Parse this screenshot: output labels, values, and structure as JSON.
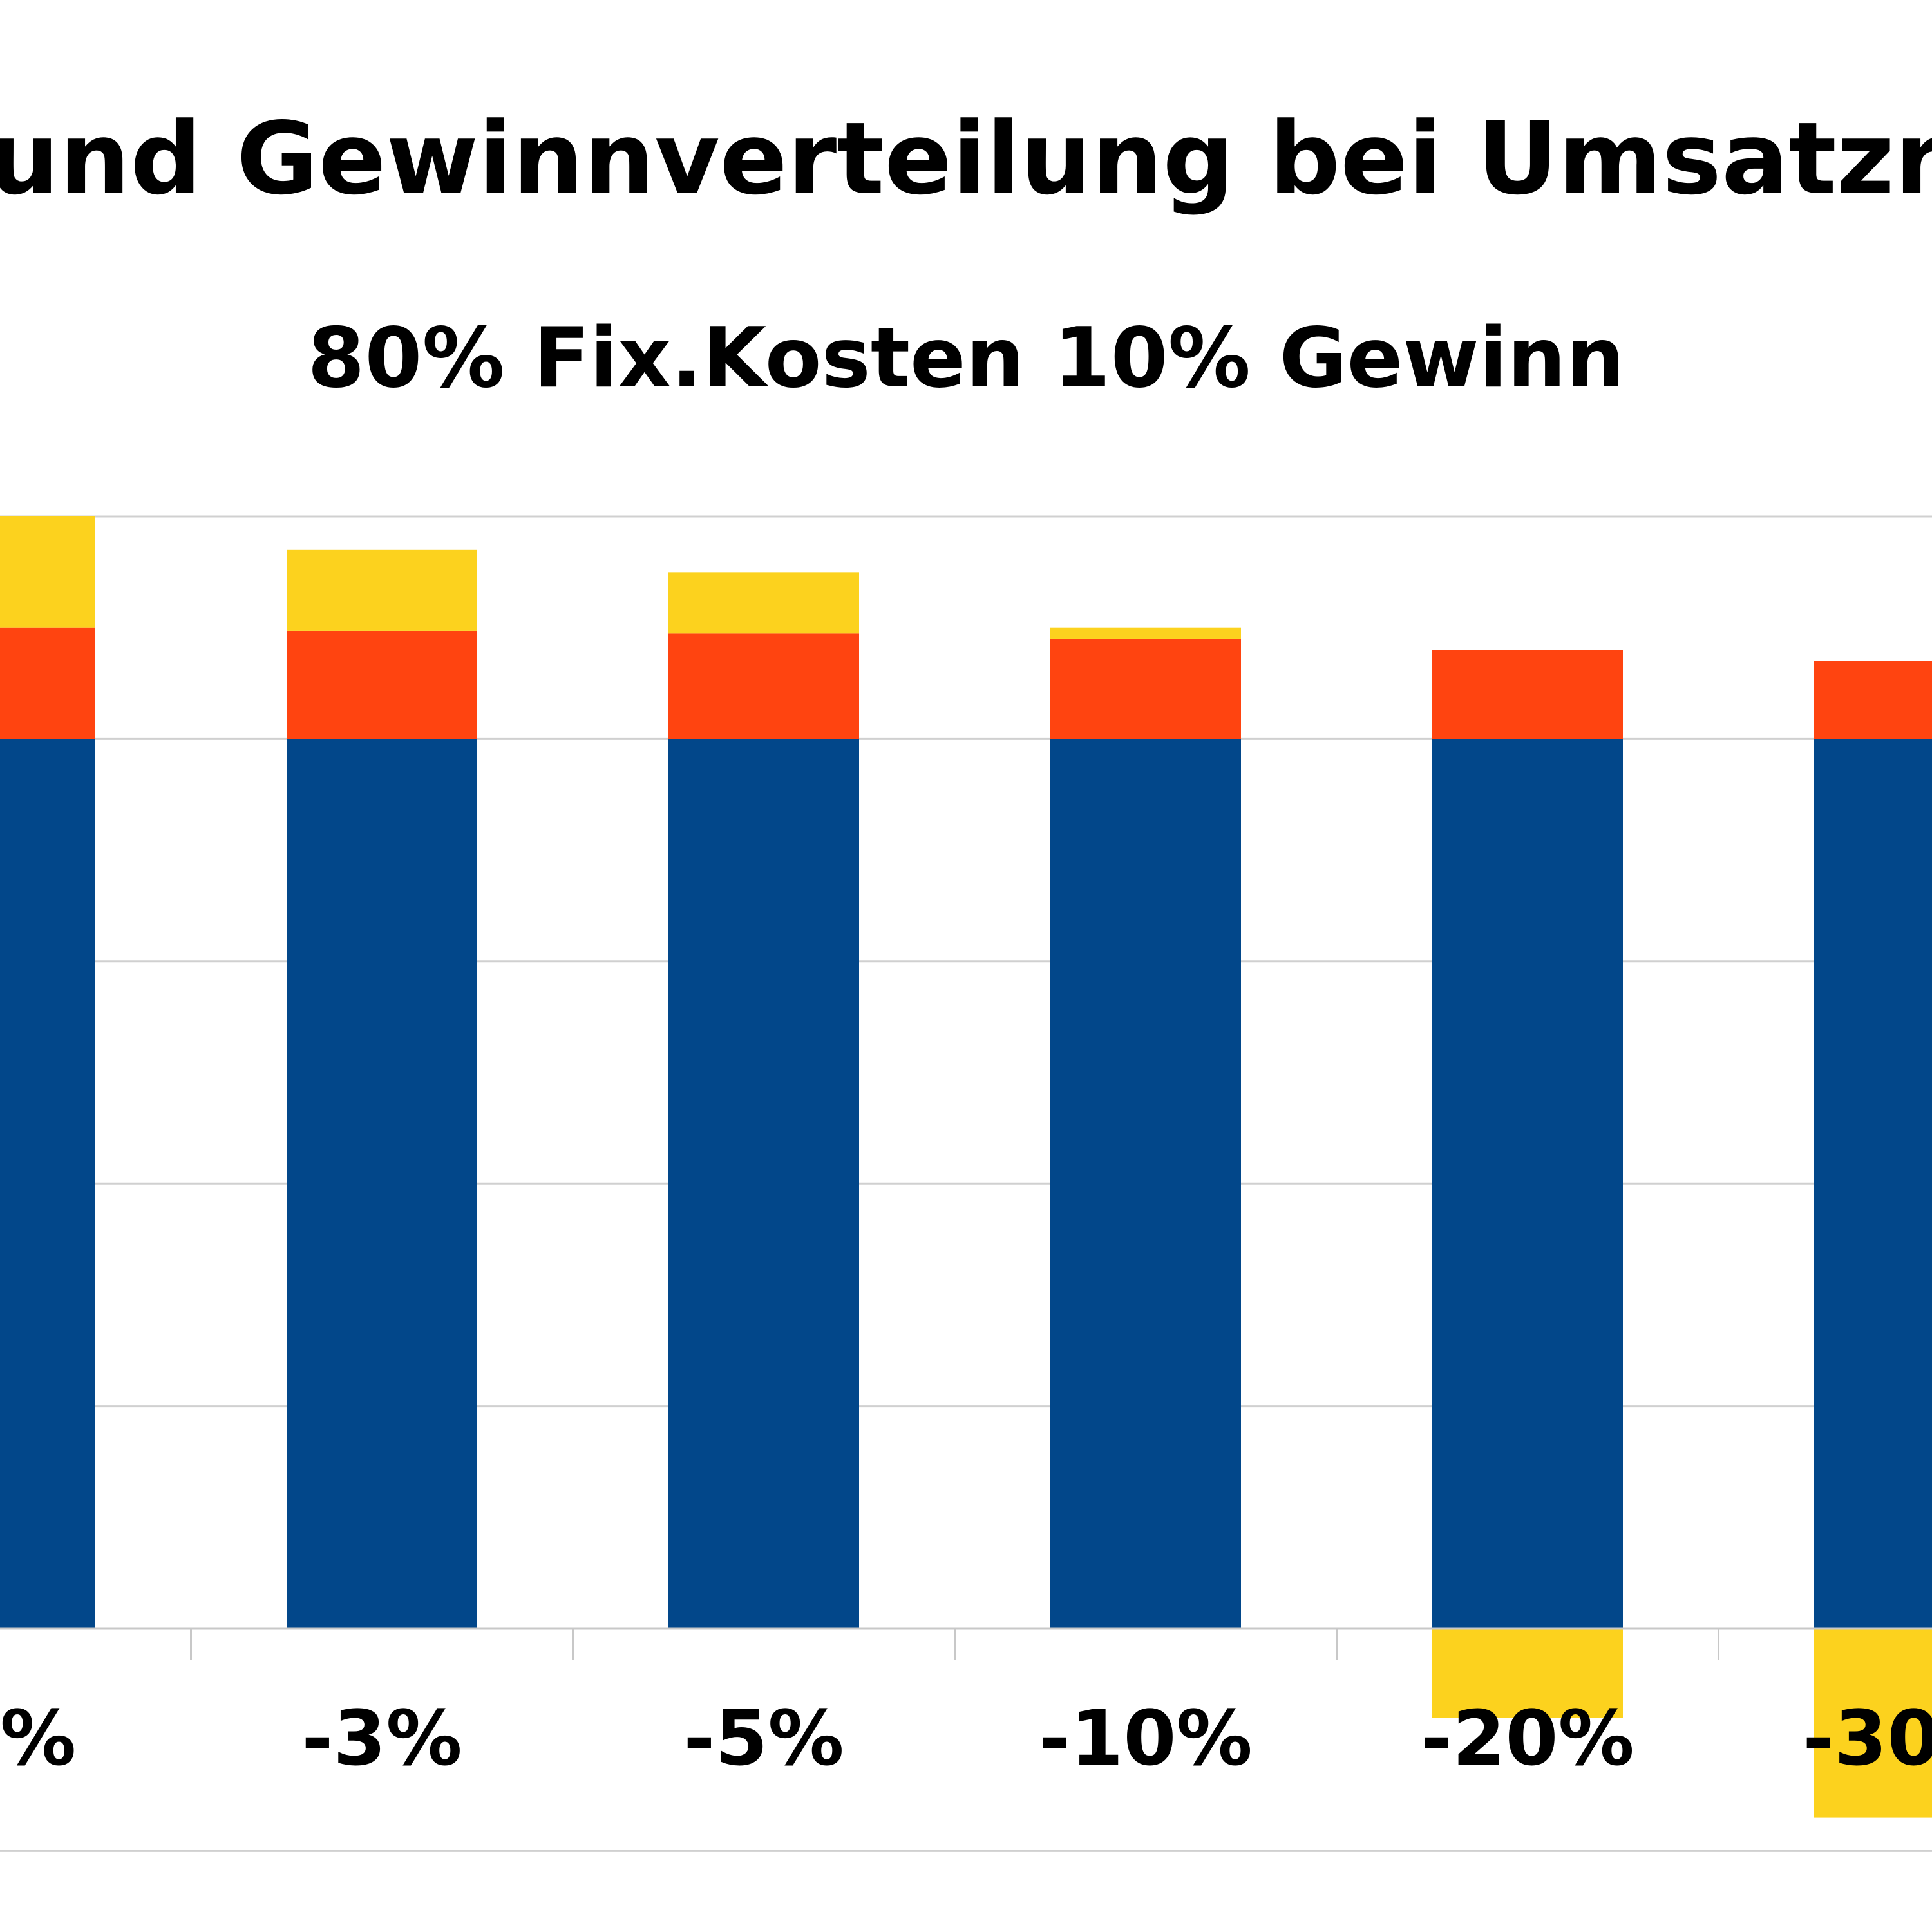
{
  "chart_data": {
    "type": "bar",
    "stacked": true,
    "title": "und Gewinnverteilung bei Umsatzr",
    "subtitle": "80% Fix.Kosten 10% Gewinn",
    "xlabel": "",
    "ylabel": "",
    "categories": [
      "%",
      "-3%",
      "-5%",
      "-10%",
      "-20%",
      "-30%"
    ],
    "series": [
      {
        "color": "#02478A",
        "values": [
          80,
          80,
          80,
          80,
          80,
          80
        ]
      },
      {
        "color": "#FF4410",
        "values": [
          10,
          9.7,
          9.5,
          9,
          8,
          7
        ]
      },
      {
        "color": "#FCD21E",
        "values": [
          10,
          7.3,
          5.5,
          1,
          -8,
          -17
        ]
      }
    ],
    "ylim": [
      -20,
      100
    ],
    "grid": true,
    "legend": "none"
  }
}
